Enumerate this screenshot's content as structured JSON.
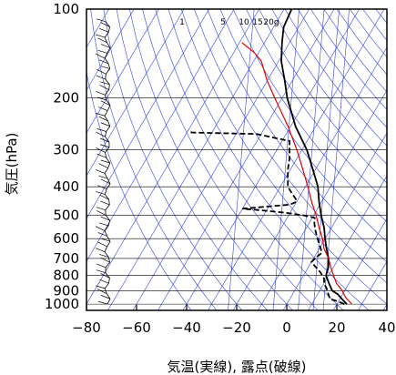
{
  "chart_data": {
    "type": "skew-t",
    "xlabel": "気温(実線), 露点(破線)",
    "ylabel": "気圧(hPa)",
    "x_ticks": [
      -80,
      -60,
      -40,
      -20,
      0,
      20,
      40
    ],
    "y_ticks": [
      100,
      200,
      300,
      400,
      500,
      600,
      700,
      800,
      900,
      1000
    ],
    "xlim": [
      -80,
      40
    ],
    "ylim": [
      1050,
      100
    ],
    "y_scale": "log",
    "mixing_ratio_labels": [
      "1",
      "5",
      "10",
      "15",
      "20g"
    ],
    "colors": {
      "temperature": "#000000",
      "dewpoint": "#000000",
      "parcel": "#e00000",
      "guides": "#3344dd",
      "grid": "#000000"
    },
    "series": [
      {
        "name": "",
        "line_style": "solid",
        "points": [
          [
            1000,
            24
          ],
          [
            975,
            22
          ],
          [
            950,
            20
          ],
          [
            925,
            18
          ],
          [
            900,
            15
          ],
          [
            850,
            12
          ],
          [
            800,
            9
          ],
          [
            750,
            8
          ],
          [
            700,
            6
          ],
          [
            650,
            3
          ],
          [
            600,
            0
          ],
          [
            550,
            -3
          ],
          [
            500,
            -7
          ],
          [
            450,
            -11
          ],
          [
            400,
            -15
          ],
          [
            350,
            -21
          ],
          [
            300,
            -28
          ],
          [
            250,
            -38
          ],
          [
            200,
            -48
          ],
          [
            175,
            -53
          ],
          [
            150,
            -59
          ],
          [
            130,
            -63
          ],
          [
            115,
            -66
          ],
          [
            100,
            -67
          ]
        ]
      },
      {
        "name": "",
        "line_style": "dashed",
        "points": [
          [
            1000,
            23
          ],
          [
            980,
            20
          ],
          [
            960,
            16
          ],
          [
            920,
            14
          ],
          [
            880,
            12
          ],
          [
            850,
            10
          ],
          [
            820,
            9
          ],
          [
            780,
            6
          ],
          [
            760,
            4
          ],
          [
            740,
            2
          ],
          [
            720,
            0
          ],
          [
            690,
            1
          ],
          [
            670,
            2
          ],
          [
            640,
            0
          ],
          [
            600,
            -3
          ],
          [
            560,
            -6
          ],
          [
            530,
            -8
          ],
          [
            510,
            -9
          ],
          [
            500,
            -14
          ],
          [
            490,
            -22
          ],
          [
            480,
            -33
          ],
          [
            475,
            -40
          ],
          [
            470,
            -34
          ],
          [
            460,
            -22
          ],
          [
            450,
            -20
          ],
          [
            440,
            -21
          ],
          [
            420,
            -24
          ],
          [
            400,
            -27
          ],
          [
            350,
            -31
          ],
          [
            320,
            -33
          ],
          [
            300,
            -35
          ],
          [
            280,
            -37
          ],
          [
            265,
            -52
          ],
          [
            262,
            -78
          ],
          [
            258,
            -80
          ]
        ]
      },
      {
        "name": "",
        "line_style": "solid",
        "points": [
          [
            1000,
            26
          ],
          [
            950,
            22
          ],
          [
            900,
            19
          ],
          [
            850,
            15
          ],
          [
            800,
            12
          ],
          [
            750,
            9
          ],
          [
            700,
            6
          ],
          [
            650,
            2
          ],
          [
            600,
            -1
          ],
          [
            550,
            -5
          ],
          [
            500,
            -9
          ],
          [
            450,
            -14
          ],
          [
            400,
            -19
          ],
          [
            350,
            -25
          ],
          [
            300,
            -32
          ],
          [
            250,
            -41
          ],
          [
            200,
            -53
          ],
          [
            175,
            -60
          ],
          [
            150,
            -67
          ],
          [
            140,
            -72
          ],
          [
            130,
            -79
          ]
        ]
      }
    ]
  }
}
